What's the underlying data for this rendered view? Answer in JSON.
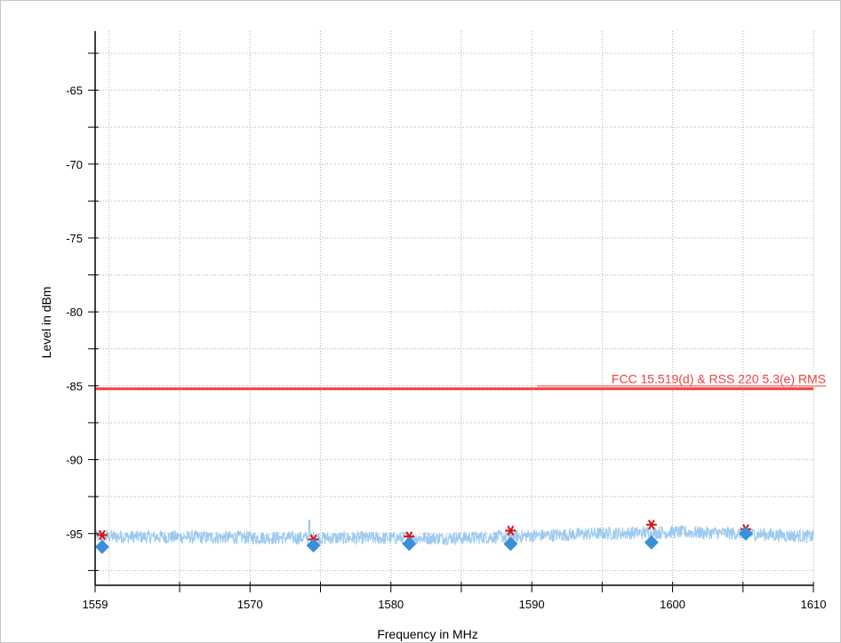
{
  "chart_data": {
    "type": "line",
    "xlabel": "Frequency in MHz",
    "ylabel": "Level in dBm",
    "xlim": [
      1559,
      1610
    ],
    "ylim": [
      -98.5,
      -61
    ],
    "x_ticks": [
      1559,
      1570,
      1580,
      1590,
      1600,
      1610
    ],
    "y_ticks": [
      -95,
      -90,
      -85,
      -80,
      -75,
      -70,
      -65
    ],
    "grid": true,
    "colors": {
      "noise": "#9ccaf0",
      "limit": "#f04040",
      "peak": "#e01010",
      "average": "#3a8fd8",
      "axis": "#000000",
      "grid": "#b0b0b0"
    },
    "limit_line": {
      "label": "FCC 15.519(d) & RSS 220 5.3(e) RMS",
      "y": -85.2
    },
    "noise_floor": {
      "baseline": [
        [
          1559,
          -95.2
        ],
        [
          1575,
          -95.3
        ],
        [
          1585,
          -95.3
        ],
        [
          1595,
          -95.0
        ],
        [
          1600,
          -94.9
        ],
        [
          1605,
          -95.0
        ],
        [
          1610,
          -95.2
        ]
      ]
    },
    "series": [
      {
        "marker": "asterisk",
        "x": [
          1559.5,
          1574.5,
          1581.3,
          1588.5,
          1598.5,
          1605.2
        ],
        "y": [
          -95.1,
          -95.4,
          -95.2,
          -94.8,
          -94.4,
          -94.7
        ]
      },
      {
        "marker": "diamond",
        "x": [
          1559.5,
          1574.5,
          1581.3,
          1588.5,
          1598.5,
          1605.2
        ],
        "y": [
          -95.9,
          -95.8,
          -95.7,
          -95.7,
          -95.6,
          -95.0
        ]
      }
    ]
  }
}
